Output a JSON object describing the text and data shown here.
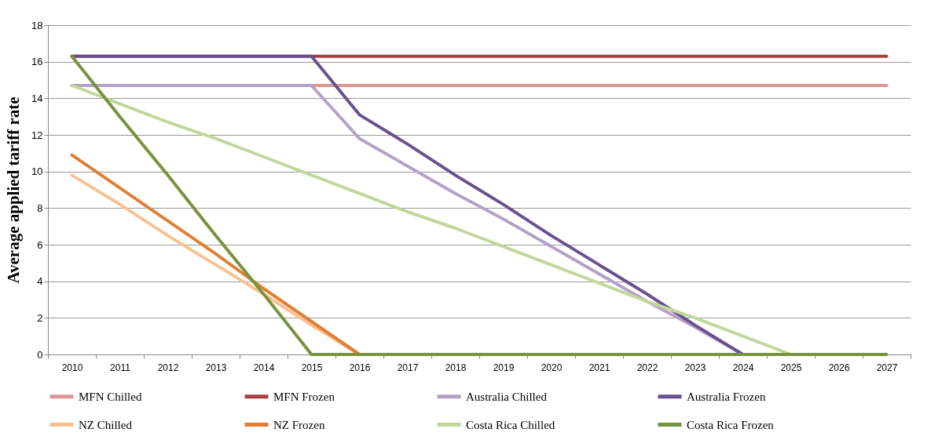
{
  "chart_data": {
    "type": "line",
    "ylabel": "Average  applied tariff rate",
    "categories": [
      "2010",
      "2011",
      "2012",
      "2013",
      "2014",
      "2015",
      "2016",
      "2017",
      "2018",
      "2019",
      "2020",
      "2021",
      "2022",
      "2023",
      "2024",
      "2025",
      "2026",
      "2027"
    ],
    "ylim": [
      0,
      18
    ],
    "yticks": [
      0,
      2,
      4,
      6,
      8,
      10,
      12,
      14,
      16,
      18
    ],
    "grid": "y",
    "legend": "bottom",
    "marker": "none",
    "line_style": "solid",
    "series": [
      {
        "name": "MFN Chilled",
        "color": "#d99694",
        "values": [
          14.7,
          14.7,
          14.7,
          14.7,
          14.7,
          14.7,
          14.7,
          14.7,
          14.7,
          14.7,
          14.7,
          14.7,
          14.7,
          14.7,
          14.7,
          14.7,
          14.7,
          14.7
        ]
      },
      {
        "name": "MFN Frozen",
        "color": "#a5403e",
        "values": [
          16.3,
          16.3,
          16.3,
          16.3,
          16.3,
          16.3,
          16.3,
          16.3,
          16.3,
          16.3,
          16.3,
          16.3,
          16.3,
          16.3,
          16.3,
          16.3,
          16.3,
          16.3
        ]
      },
      {
        "name": "Australia Chilled",
        "color": "#b3a2c7",
        "values": [
          14.7,
          14.7,
          14.7,
          14.7,
          14.7,
          14.7,
          11.8,
          10.3,
          8.8,
          7.4,
          5.9,
          4.4,
          2.9,
          1.5,
          0,
          null,
          null,
          null
        ]
      },
      {
        "name": "Australia Frozen",
        "color": "#67528e",
        "values": [
          16.3,
          16.3,
          16.3,
          16.3,
          16.3,
          16.3,
          13.1,
          11.5,
          9.8,
          8.2,
          6.5,
          4.9,
          3.3,
          1.6,
          0,
          null,
          null,
          null
        ]
      },
      {
        "name": "NZ Chilled",
        "color": "#fac090",
        "values": [
          9.8,
          8.2,
          6.5,
          4.9,
          3.3,
          1.6,
          0,
          null,
          null,
          null,
          null,
          null,
          null,
          null,
          null,
          null,
          null,
          null
        ]
      },
      {
        "name": "NZ Frozen",
        "color": "#e07f35",
        "values": [
          10.9,
          9.1,
          7.3,
          5.5,
          3.6,
          1.8,
          0,
          null,
          null,
          null,
          null,
          null,
          null,
          null,
          null,
          null,
          null,
          null
        ]
      },
      {
        "name": "Costa Rica Chilled",
        "color": "#c3d69b",
        "values": [
          14.7,
          13.7,
          12.7,
          11.8,
          10.8,
          9.8,
          8.8,
          7.8,
          6.9,
          5.9,
          4.9,
          3.9,
          2.9,
          2.0,
          1.0,
          0,
          null,
          null
        ]
      },
      {
        "name": "Costa Rica Frozen",
        "color": "#77933c",
        "values": [
          16.3,
          13.0,
          9.8,
          6.5,
          3.3,
          0,
          0,
          0,
          0,
          0,
          0,
          0,
          0,
          0,
          0,
          0,
          0,
          0
        ]
      }
    ]
  }
}
